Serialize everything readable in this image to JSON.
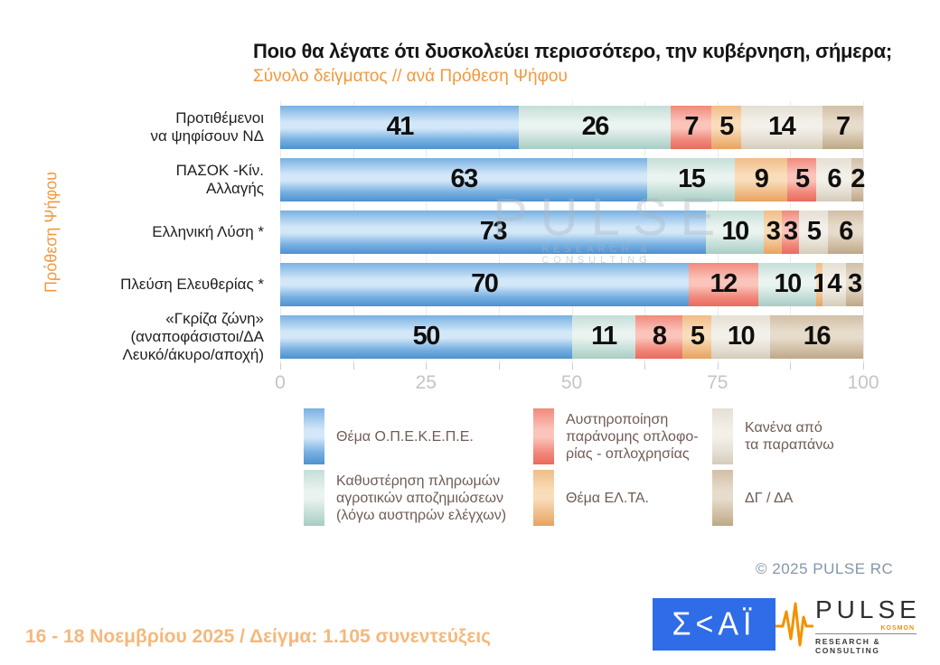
{
  "header": {
    "title": "Ποιο θα λέγατε ότι δυσκολεύει περισσότερο, την κυβέρνηση, σήμερα;",
    "subtitle": "Σύνολο δείγματος // ανά Πρόθεση Ψήφου"
  },
  "colors": {
    "accent_orange": "#f0993f",
    "footer_orange": "#f5b87b",
    "tick_gray": "#c5c5c5",
    "legend_text": "#6f5c55",
    "copyright_gray": "#8496a9",
    "skai_blue": "#2f6ce8",
    "pulse_orange": "#f39200"
  },
  "chart_data": {
    "type": "bar",
    "orientation": "horizontal",
    "stacked": true,
    "xlim": [
      0,
      100
    ],
    "x_major_ticks": [
      0,
      25,
      50,
      75,
      100
    ],
    "x_minor_step": 12.5,
    "grid": true,
    "ylabel": "Πρόθεση Ψήφου",
    "categories": [
      "Προτιθέμενοι\nνα ψηφίσουν ΝΔ",
      "ΠΑΣΟΚ -Κίν.\nΑλλαγής",
      "Ελληνική Λύση *",
      "Πλεύση Ελευθερίας *",
      "«Γκρίζα ζώνη»\n(αναποφάσιστοι/ΔΑ\nΛευκό/άκυρο/αποχή)"
    ],
    "legend": [
      {
        "key": "opekepe",
        "label": "Θέμα Ο.Π.Ε.Κ.Ε.Π.Ε.",
        "color": "#79b1e2",
        "light": "#d2e7f8",
        "dark": "#4d92d0"
      },
      {
        "key": "agro",
        "label": "Καθυστέρηση πληρωμών\nαγροτικών αποζημιώσεων\n(λόγω αυστηρών ελέγχων)",
        "color": "#c5ded8",
        "light": "#e9f3ef",
        "dark": "#a9ccc4"
      },
      {
        "key": "opla",
        "label": "Αυστηροποίηση\nπαράνομης οπλοφο-\nρίας - οπλοχρησίας",
        "color": "#f18a7d",
        "light": "#fbc4bb",
        "dark": "#e96b5e"
      },
      {
        "key": "elta",
        "label": "Θέμα ΕΛ.ΤΑ.",
        "color": "#f0bd88",
        "light": "#f9ddba",
        "dark": "#e8a360"
      },
      {
        "key": "none",
        "label": "Κανένα από\nτα παραπάνω",
        "color": "#e5dfd3",
        "light": "#f3f0e9",
        "dark": "#d4ccba"
      },
      {
        "key": "dkda",
        "label": "ΔΓ / ΔΑ",
        "color": "#d2bfa6",
        "light": "#e7dccb",
        "dark": "#bda888"
      }
    ],
    "rows": [
      {
        "category_index": 0,
        "segments": [
          {
            "key": "opekepe",
            "value": 41
          },
          {
            "key": "agro",
            "value": 26
          },
          {
            "key": "opla",
            "value": 7
          },
          {
            "key": "elta",
            "value": 5
          },
          {
            "key": "none",
            "value": 14
          },
          {
            "key": "dkda",
            "value": 7
          }
        ]
      },
      {
        "category_index": 1,
        "segments": [
          {
            "key": "opekepe",
            "value": 63
          },
          {
            "key": "agro",
            "value": 15
          },
          {
            "key": "elta",
            "value": 9
          },
          {
            "key": "opla",
            "value": 5
          },
          {
            "key": "none",
            "value": 6
          },
          {
            "key": "dkda",
            "value": 2
          }
        ]
      },
      {
        "category_index": 2,
        "segments": [
          {
            "key": "opekepe",
            "value": 73
          },
          {
            "key": "agro",
            "value": 10
          },
          {
            "key": "elta",
            "value": 3
          },
          {
            "key": "opla",
            "value": 3
          },
          {
            "key": "none",
            "value": 5
          },
          {
            "key": "dkda",
            "value": 6
          }
        ]
      },
      {
        "category_index": 3,
        "segments": [
          {
            "key": "opekepe",
            "value": 70
          },
          {
            "key": "opla",
            "value": 12
          },
          {
            "key": "agro",
            "value": 10
          },
          {
            "key": "elta",
            "value": 1
          },
          {
            "key": "none",
            "value": 4
          },
          {
            "key": "dkda",
            "value": 3
          }
        ]
      },
      {
        "category_index": 4,
        "segments": [
          {
            "key": "opekepe",
            "value": 50
          },
          {
            "key": "agro",
            "value": 11
          },
          {
            "key": "opla",
            "value": 8
          },
          {
            "key": "elta",
            "value": 5
          },
          {
            "key": "none",
            "value": 10
          },
          {
            "key": "dkda",
            "value": 16
          }
        ]
      }
    ],
    "series": [
      {
        "name": "Θέμα Ο.Π.Ε.Κ.Ε.Π.Ε.",
        "values": [
          41,
          63,
          73,
          70,
          50
        ]
      },
      {
        "name": "Καθυστέρηση πληρωμών αγροτικών αποζημιώσεων (λόγω αυστηρών ελέγχων)",
        "values": [
          26,
          15,
          10,
          10,
          11
        ]
      },
      {
        "name": "Αυστηροποίηση παράνομης οπλοφορίας - οπλοχρησίας",
        "values": [
          7,
          5,
          3,
          12,
          8
        ]
      },
      {
        "name": "Θέμα ΕΛ.ΤΑ.",
        "values": [
          5,
          9,
          3,
          1,
          5
        ]
      },
      {
        "name": "Κανένα από τα παραπάνω",
        "values": [
          14,
          6,
          5,
          4,
          10
        ]
      },
      {
        "name": "ΔΓ / ΔΑ",
        "values": [
          7,
          2,
          6,
          3,
          16
        ]
      }
    ],
    "title": "Ποιο θα λέγατε ότι δυσκολεύει περισσότερο, την κυβέρνηση, σήμερα;",
    "subtitle": "Σύνολο δείγματος // ανά Πρόθεση Ψήφου",
    "legend_position": "bottom"
  },
  "watermark": {
    "line1": "PULSE",
    "line2": "RESEARCH & CONSULTING"
  },
  "copyright": "©  2025  PULSE RC",
  "footer": {
    "note": "16 - 18 Νοεμβρίου 2025  /  Δείγμα:  1.105 συνεντεύξεις"
  },
  "logos": {
    "skai": {
      "text": "Σ<ΑΪ",
      "alt": "ΣΚΑΪ"
    },
    "pulse": {
      "name": "PULSE",
      "kosmon": "KOSMON",
      "sub": "RESEARCH & CONSULTING"
    }
  }
}
